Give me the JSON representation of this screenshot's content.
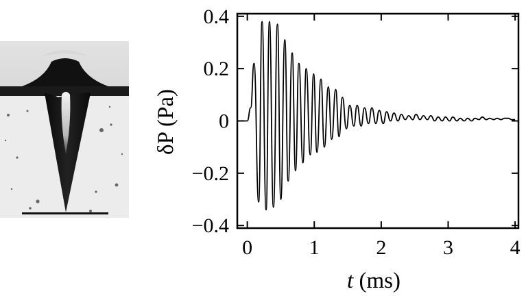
{
  "chart_data": {
    "type": "line",
    "xlabel_symbol": "t",
    "xlabel_unit": " (ms)",
    "ylabel_symbol": "δP",
    "ylabel_unit": " (Pa)",
    "xlim": [
      -0.15,
      4.05
    ],
    "ylim": [
      -0.41,
      0.41
    ],
    "xticks": [
      0,
      1,
      2,
      3,
      4
    ],
    "xtick_labels": [
      "0",
      "1",
      "2",
      "3",
      "4"
    ],
    "yticks": [
      -0.4,
      -0.2,
      0,
      0.2,
      0.4
    ],
    "ytick_labels": [
      "−0.4",
      "−0.2",
      "0",
      "0.2",
      "0.4"
    ],
    "grid": false,
    "series": [
      {
        "x": [
          -0.1,
          0.0,
          0.05,
          0.1,
          0.17,
          0.22,
          0.28,
          0.33,
          0.39,
          0.45,
          0.5,
          0.56,
          0.61,
          0.67,
          0.72,
          0.77,
          0.83,
          0.88,
          0.94,
          0.99,
          1.04,
          1.1,
          1.15,
          1.21,
          1.26,
          1.32,
          1.37,
          1.42,
          1.48,
          1.53,
          1.59,
          1.64,
          1.7,
          1.75,
          1.81,
          1.86,
          1.92,
          1.97,
          2.03,
          2.08,
          2.14,
          2.19,
          2.25,
          2.3,
          2.36,
          2.41,
          2.47,
          2.52,
          2.58,
          2.63,
          2.69,
          2.74,
          2.8,
          2.85,
          2.91,
          2.96,
          3.02,
          3.07,
          3.13,
          3.18,
          3.24,
          3.29,
          3.35,
          3.4,
          3.46,
          3.51,
          3.57,
          3.62,
          3.68,
          3.73,
          3.79,
          3.84,
          3.9,
          3.95,
          4.0
        ],
        "y": [
          0.0,
          0.0,
          0.05,
          0.22,
          -0.31,
          0.38,
          -0.34,
          0.38,
          -0.33,
          0.37,
          -0.3,
          0.31,
          -0.23,
          0.26,
          -0.19,
          0.22,
          -0.16,
          0.2,
          -0.13,
          0.18,
          -0.12,
          0.16,
          -0.1,
          0.13,
          -0.07,
          0.12,
          -0.06,
          0.09,
          -0.03,
          0.06,
          -0.02,
          0.06,
          -0.02,
          0.05,
          -0.01,
          0.05,
          -0.01,
          0.04,
          -0.01,
          0.035,
          0.0,
          0.03,
          0.0,
          0.025,
          0.005,
          0.02,
          0.005,
          0.025,
          0.005,
          0.02,
          0.005,
          0.02,
          0.0,
          0.015,
          0.0,
          0.015,
          0.0,
          0.015,
          0.0,
          0.01,
          0.0,
          0.01,
          0.0,
          0.01,
          0.005,
          0.015,
          0.005,
          0.01,
          0.005,
          0.01,
          0.005,
          0.01,
          0.01,
          0.005,
          0.005
        ]
      }
    ]
  }
}
